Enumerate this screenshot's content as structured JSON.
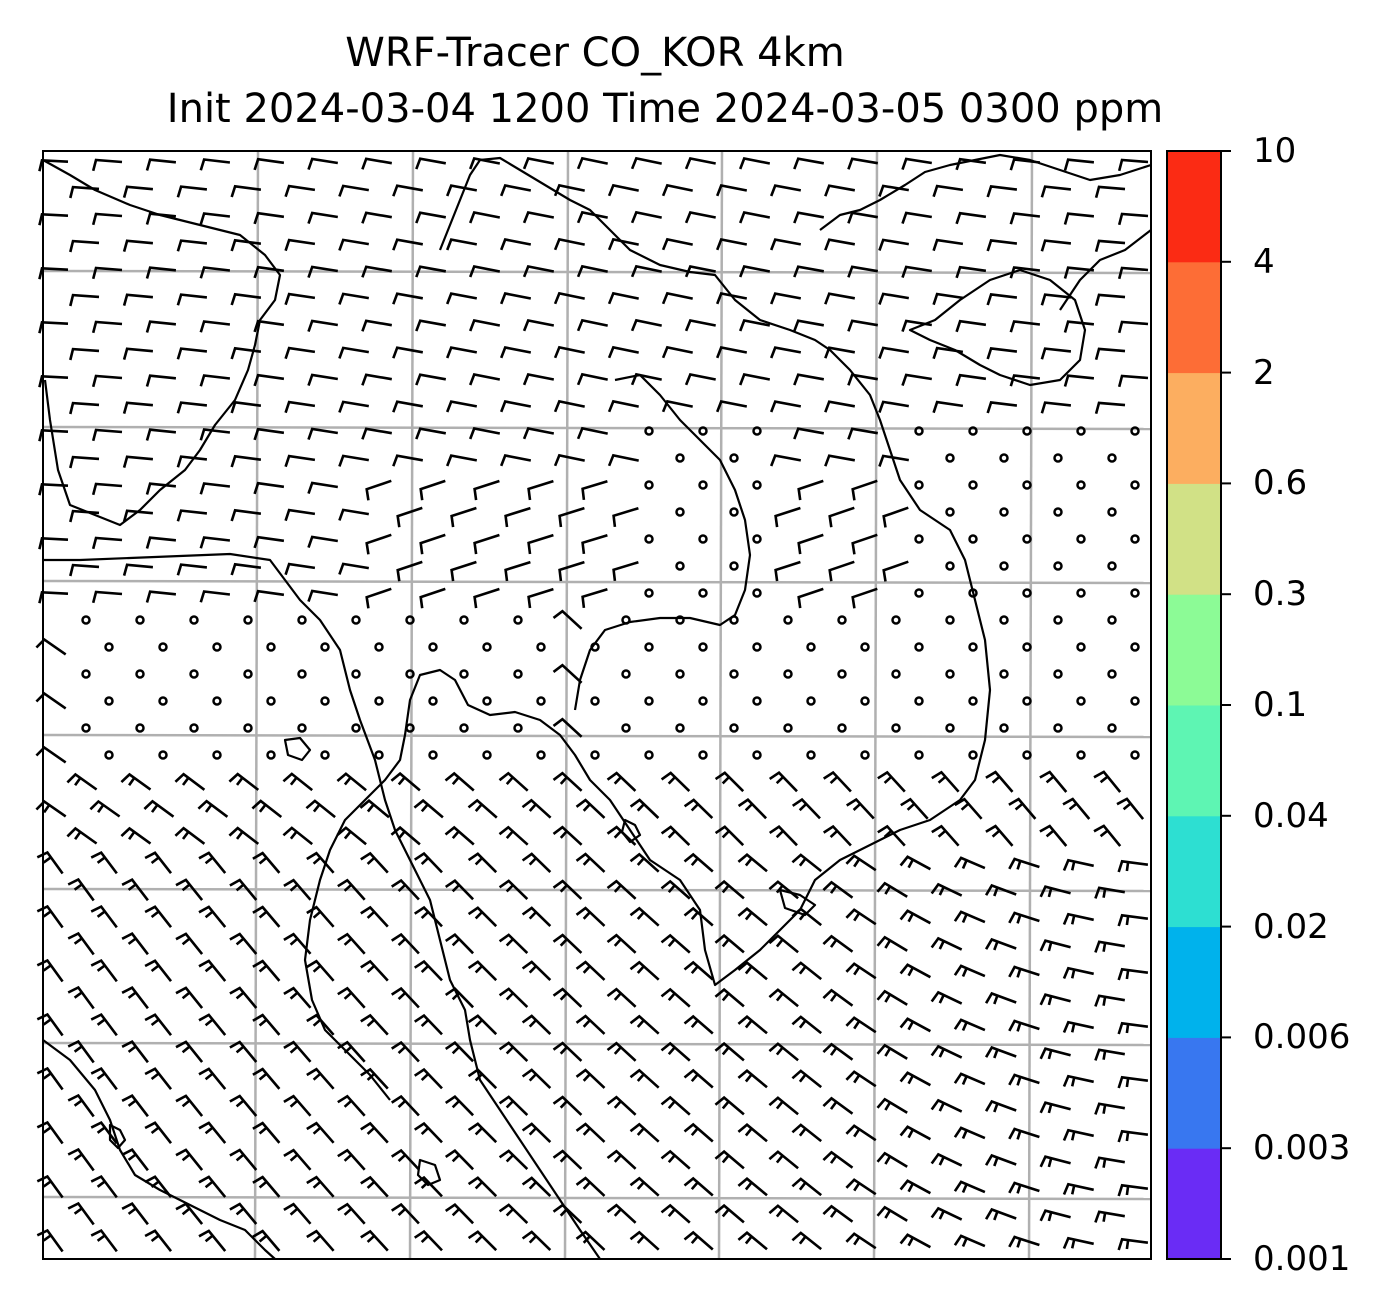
{
  "title": {
    "line1": "WRF-Tracer CO_KOR 4km",
    "line2": "Init 2024-03-04 1200 Time 2024-03-05 0300 ppm"
  },
  "colorbar": {
    "levels": [
      "0.001",
      "0.003",
      "0.006",
      "0.02",
      "0.04",
      "0.1",
      "0.3",
      "0.6",
      "2",
      "4",
      "10"
    ],
    "colors": [
      "#6a2cf5",
      "#3877f0",
      "#00b2ec",
      "#2ddfd2",
      "#5ef5b3",
      "#8cfb96",
      "#d1e186",
      "#fcae60",
      "#fd6d36",
      "#fb2b14"
    ]
  },
  "map": {
    "grid": "on",
    "coastline_color": "#000000",
    "grid_color": "#b0b0b0",
    "symbols": "wind barbs"
  }
}
